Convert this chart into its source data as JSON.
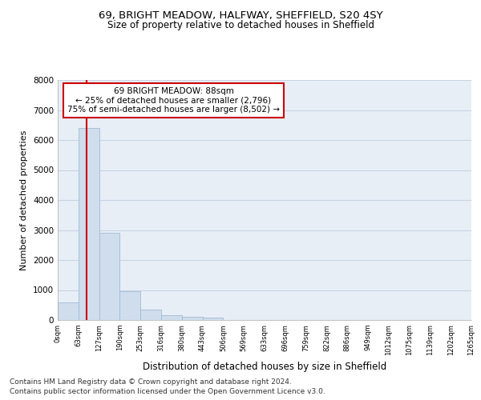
{
  "title_line1": "69, BRIGHT MEADOW, HALFWAY, SHEFFIELD, S20 4SY",
  "title_line2": "Size of property relative to detached houses in Sheffield",
  "xlabel": "Distribution of detached houses by size in Sheffield",
  "ylabel": "Number of detached properties",
  "footnote1": "Contains HM Land Registry data © Crown copyright and database right 2024.",
  "footnote2": "Contains public sector information licensed under the Open Government Licence v3.0.",
  "bin_labels": [
    "0sqm",
    "63sqm",
    "127sqm",
    "190sqm",
    "253sqm",
    "316sqm",
    "380sqm",
    "443sqm",
    "506sqm",
    "569sqm",
    "633sqm",
    "696sqm",
    "759sqm",
    "822sqm",
    "886sqm",
    "949sqm",
    "1012sqm",
    "1075sqm",
    "1139sqm",
    "1202sqm",
    "1265sqm"
  ],
  "bar_heights": [
    580,
    6400,
    2900,
    970,
    360,
    165,
    100,
    70,
    0,
    0,
    0,
    0,
    0,
    0,
    0,
    0,
    0,
    0,
    0,
    0
  ],
  "bar_color": "#cfdded",
  "bar_edge_color": "#a0bcd4",
  "property_line_color": "#cc0000",
  "annotation_text": "69 BRIGHT MEADOW: 88sqm\n← 25% of detached houses are smaller (2,796)\n75% of semi-detached houses are larger (8,502) →",
  "annotation_box_color": "#cc0000",
  "ylim": [
    0,
    8000
  ],
  "yticks": [
    0,
    1000,
    2000,
    3000,
    4000,
    5000,
    6000,
    7000,
    8000
  ],
  "grid_color": "#c8d4e4",
  "bg_color": "#e8eef6"
}
